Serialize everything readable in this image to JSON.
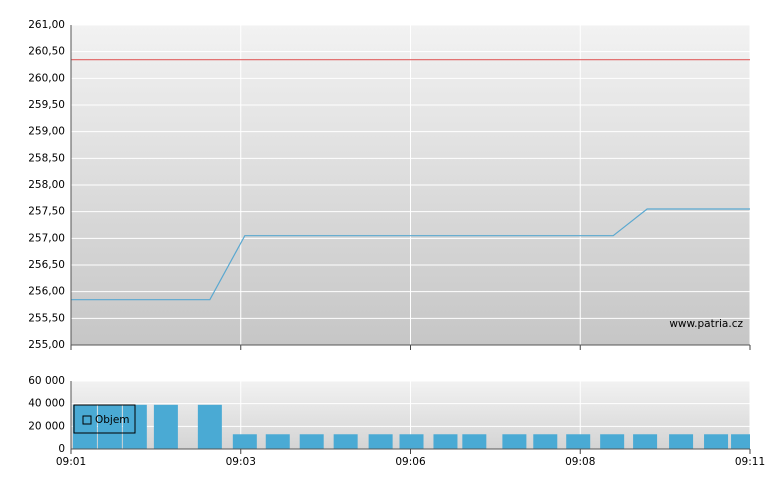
{
  "chart_data": [
    {
      "type": "line",
      "xlim": [
        0,
        4
      ],
      "xticks": [
        0,
        1,
        2,
        3,
        4
      ],
      "ylim": [
        255,
        261
      ],
      "yticks": [
        {
          "value": 255,
          "label": "255,00"
        },
        {
          "value": 255.5,
          "label": "255,50"
        },
        {
          "value": 256,
          "label": "256,00"
        },
        {
          "value": 256.5,
          "label": "256,50"
        },
        {
          "value": 257,
          "label": "257,00"
        },
        {
          "value": 257.5,
          "label": "257,50"
        },
        {
          "value": 258,
          "label": "258,00"
        },
        {
          "value": 258.5,
          "label": "258,50"
        },
        {
          "value": 259,
          "label": "259,00"
        },
        {
          "value": 259.5,
          "label": "259,50"
        },
        {
          "value": 260,
          "label": "260,00"
        },
        {
          "value": 260.5,
          "label": "260,50"
        },
        {
          "value": 261,
          "label": "261,00"
        }
      ],
      "grid": true,
      "series": [
        {
          "color": "#5aa8d0",
          "x": [
            0,
            0.818,
            1.024,
            3.194,
            3.394,
            4
          ],
          "values": [
            255.85,
            255.85,
            257.05,
            257.05,
            257.55,
            257.55
          ]
        }
      ],
      "reference_line": {
        "value": 260.35,
        "color": "#e06060"
      },
      "watermark": "www.patria.cz"
    },
    {
      "type": "bar",
      "xlim": [
        0,
        4
      ],
      "xticks": [
        {
          "value": 0,
          "label": "09:01"
        },
        {
          "value": 1,
          "label": "09:03"
        },
        {
          "value": 2,
          "label": "09:06"
        },
        {
          "value": 3,
          "label": "09:08"
        },
        {
          "value": 4,
          "label": "09:11"
        }
      ],
      "ylim": [
        0,
        60000
      ],
      "yticks": [
        0,
        {
          "value": 20000,
          "label": "20 000"
        },
        {
          "value": 40000,
          "label": "40 000"
        },
        {
          "value": 60000,
          "label": "60 000"
        }
      ],
      "grid": true,
      "series": [
        {
          "name": "Objem",
          "color": "#4aaad4",
          "x": [
            0.082,
            0.229,
            0.376,
            0.559,
            0.818,
            1.024,
            1.218,
            1.418,
            1.618,
            1.824,
            2.006,
            2.206,
            2.376,
            2.612,
            2.794,
            2.988,
            3.188,
            3.382,
            3.594,
            3.8,
            3.959
          ],
          "values": [
            39000,
            39000,
            39000,
            39000,
            39000,
            13000,
            13000,
            13000,
            13000,
            13000,
            13000,
            13000,
            13000,
            13000,
            13000,
            13000,
            13000,
            13000,
            13000,
            13000,
            13000
          ]
        }
      ]
    }
  ]
}
